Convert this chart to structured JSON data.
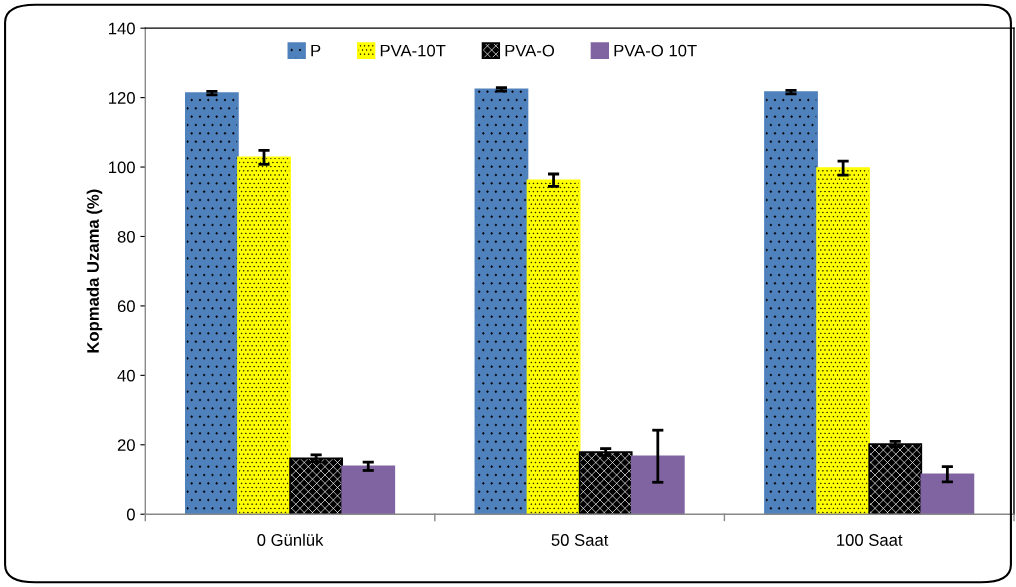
{
  "chart_data": {
    "type": "bar",
    "ylabel": "Kopmada Uzama (%)",
    "categories": [
      "0 Günlük",
      "50 Saat",
      "100 Saat"
    ],
    "series": [
      {
        "name": "P",
        "color": "#4f81bd",
        "values": [
          121.3,
          122.4,
          121.6
        ],
        "errors": [
          0.5,
          0.5,
          0.5
        ]
      },
      {
        "name": "PVA-10T",
        "color": "#ffff00",
        "values": [
          102.8,
          96.2,
          99.7
        ],
        "errors": [
          2,
          1.8,
          2
        ]
      },
      {
        "name": "PVA-O",
        "color": "#000000",
        "values": [
          16.1,
          17.9,
          20.2
        ],
        "errors": [
          1,
          1,
          0.8
        ]
      },
      {
        "name": "PVA-O 10T",
        "color": "#8064a2",
        "values": [
          13.8,
          16.7,
          11.5
        ],
        "errors": [
          1.2,
          7.5,
          2.2
        ]
      }
    ],
    "ylim": [
      0,
      140
    ],
    "yticks": [
      0,
      20,
      40,
      60,
      80,
      100,
      120,
      140
    ],
    "grid": false,
    "legend": "top"
  }
}
